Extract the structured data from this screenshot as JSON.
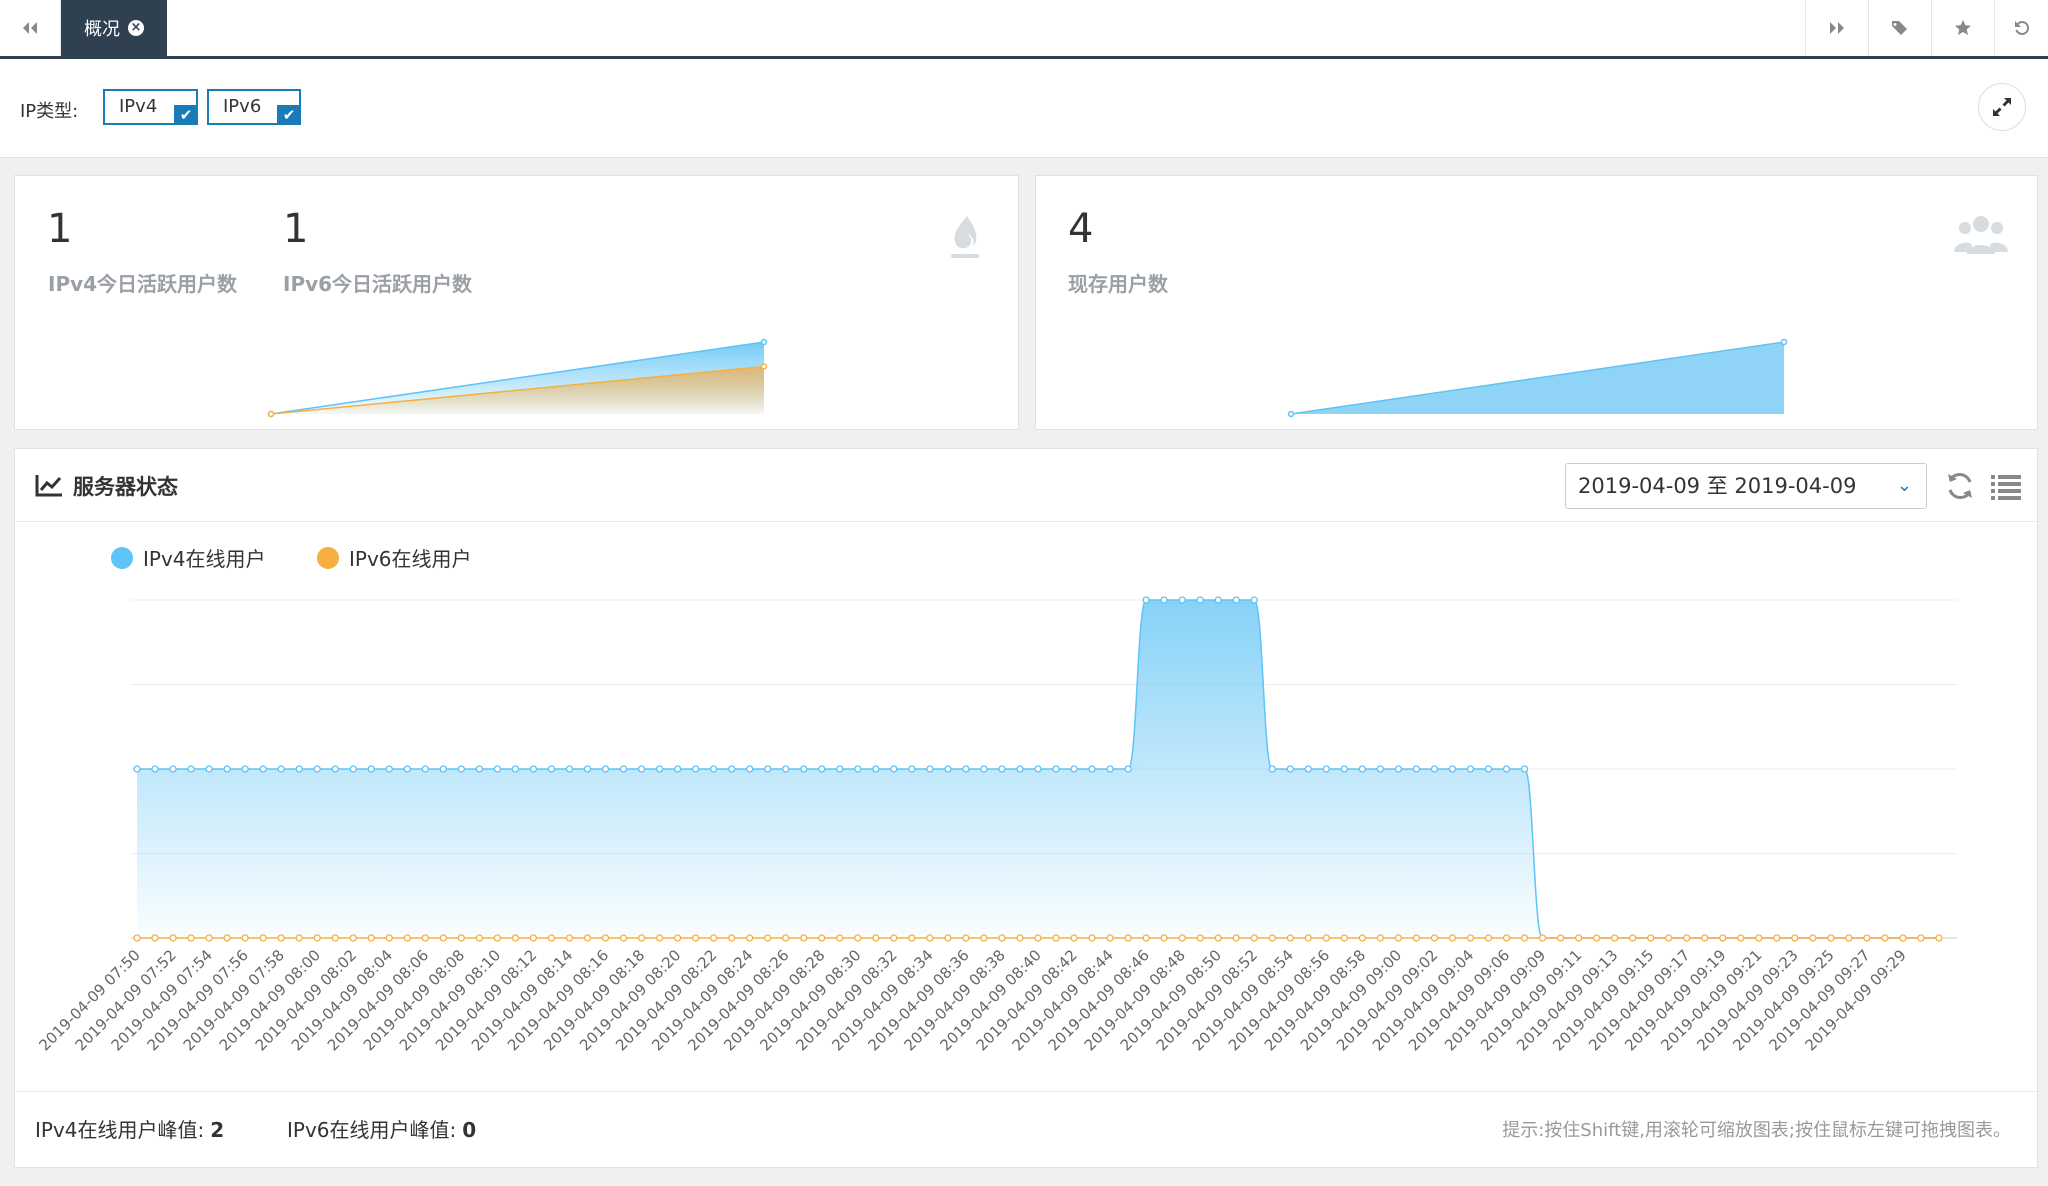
{
  "tabs": {
    "active_label": "概况"
  },
  "filter": {
    "label": "IP类型:",
    "options": [
      {
        "label": "IPv4",
        "checked": true
      },
      {
        "label": "IPv6",
        "checked": true
      }
    ]
  },
  "stats_card_1": {
    "ipv4_active_value": "1",
    "ipv4_active_label": "IPv4今日活跃用户数",
    "ipv6_active_value": "1",
    "ipv6_active_label": "IPv6今日活跃用户数",
    "icon": "fire-icon"
  },
  "stats_card_2": {
    "existing_value": "4",
    "existing_label": "现存用户数",
    "icon": "users-icon"
  },
  "server_panel": {
    "title": "服务器状态",
    "date_range": "2019-04-09 至 2019-04-09",
    "legend": [
      {
        "name": "IPv4在线用户",
        "color": "#5ec3f5"
      },
      {
        "name": "IPv6在线用户",
        "color": "#f5b041"
      }
    ],
    "peak_ipv4_label": "IPv4在线用户峰值:",
    "peak_ipv4_value": "2",
    "peak_ipv6_label": "IPv6在线用户峰值:",
    "peak_ipv6_value": "0",
    "hint": "提示:按住Shift键,用滚轮可缩放图表;按住鼠标左键可拖拽图表。"
  },
  "chart_data": {
    "type": "area",
    "x_tick_labels": [
      "2019-04-09 07:50",
      "2019-04-09 07:52",
      "2019-04-09 07:54",
      "2019-04-09 07:56",
      "2019-04-09 07:58",
      "2019-04-09 08:00",
      "2019-04-09 08:02",
      "2019-04-09 08:04",
      "2019-04-09 08:06",
      "2019-04-09 08:08",
      "2019-04-09 08:10",
      "2019-04-09 08:12",
      "2019-04-09 08:14",
      "2019-04-09 08:16",
      "2019-04-09 08:18",
      "2019-04-09 08:20",
      "2019-04-09 08:22",
      "2019-04-09 08:24",
      "2019-04-09 08:26",
      "2019-04-09 08:28",
      "2019-04-09 08:30",
      "2019-04-09 08:32",
      "2019-04-09 08:34",
      "2019-04-09 08:36",
      "2019-04-09 08:38",
      "2019-04-09 08:40",
      "2019-04-09 08:42",
      "2019-04-09 08:44",
      "2019-04-09 08:46",
      "2019-04-09 08:48",
      "2019-04-09 08:50",
      "2019-04-09 08:52",
      "2019-04-09 08:54",
      "2019-04-09 08:56",
      "2019-04-09 08:58",
      "2019-04-09 09:00",
      "2019-04-09 09:02",
      "2019-04-09 09:04",
      "2019-04-09 09:06",
      "2019-04-09 09:09",
      "2019-04-09 09:11",
      "2019-04-09 09:13",
      "2019-04-09 09:15",
      "2019-04-09 09:17",
      "2019-04-09 09:19",
      "2019-04-09 09:21",
      "2019-04-09 09:23",
      "2019-04-09 09:25",
      "2019-04-09 09:27",
      "2019-04-09 09:29"
    ],
    "point_count": 101,
    "series": [
      {
        "name": "IPv4在线用户",
        "color": "#5ec3f5",
        "values": [
          1,
          1,
          1,
          1,
          1,
          1,
          1,
          1,
          1,
          1,
          1,
          1,
          1,
          1,
          1,
          1,
          1,
          1,
          1,
          1,
          1,
          1,
          1,
          1,
          1,
          1,
          1,
          1,
          1,
          1,
          1,
          1,
          1,
          1,
          1,
          1,
          1,
          1,
          1,
          1,
          1,
          1,
          1,
          1,
          1,
          1,
          1,
          1,
          1,
          1,
          1,
          1,
          1,
          1,
          1,
          1,
          2,
          2,
          2,
          2,
          2,
          2,
          2,
          1,
          1,
          1,
          1,
          1,
          1,
          1,
          1,
          1,
          1,
          1,
          1,
          1,
          1,
          1,
          0,
          0,
          0,
          0,
          0,
          0,
          0,
          0,
          0,
          0,
          0,
          0,
          0,
          0,
          0,
          0,
          0,
          0,
          0,
          0,
          0,
          0,
          0
        ]
      },
      {
        "name": "IPv6在线用户",
        "color": "#f5b041",
        "values": [
          0,
          0,
          0,
          0,
          0,
          0,
          0,
          0,
          0,
          0,
          0,
          0,
          0,
          0,
          0,
          0,
          0,
          0,
          0,
          0,
          0,
          0,
          0,
          0,
          0,
          0,
          0,
          0,
          0,
          0,
          0,
          0,
          0,
          0,
          0,
          0,
          0,
          0,
          0,
          0,
          0,
          0,
          0,
          0,
          0,
          0,
          0,
          0,
          0,
          0,
          0,
          0,
          0,
          0,
          0,
          0,
          0,
          0,
          0,
          0,
          0,
          0,
          0,
          0,
          0,
          0,
          0,
          0,
          0,
          0,
          0,
          0,
          0,
          0,
          0,
          0,
          0,
          0,
          0,
          0,
          0,
          0,
          0,
          0,
          0,
          0,
          0,
          0,
          0,
          0,
          0,
          0,
          0,
          0,
          0,
          0,
          0,
          0,
          0,
          0,
          0
        ]
      }
    ],
    "ylim": [
      0,
      2
    ],
    "grid": true
  },
  "sparks": {
    "card1": [
      {
        "name": "IPv4",
        "color": "#5ec3f5",
        "values": [
          0,
          1
        ]
      },
      {
        "name": "IPv6",
        "color": "#f5b041",
        "values": [
          0,
          0.66
        ]
      }
    ],
    "card2": [
      {
        "name": "users",
        "color": "#5ec3f5",
        "values": [
          0,
          1
        ]
      }
    ]
  }
}
